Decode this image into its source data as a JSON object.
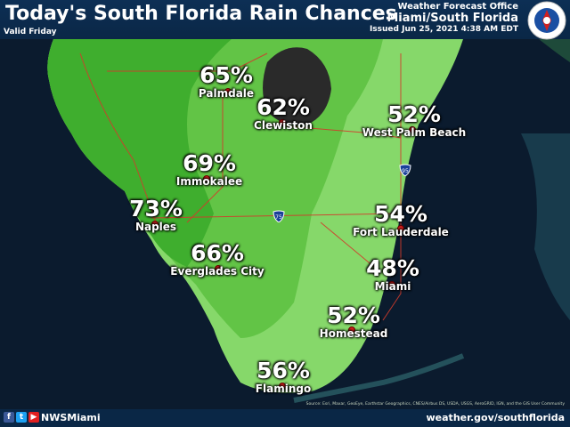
{
  "header": {
    "title": "Today's South Florida Rain Chances",
    "valid": "Valid Friday",
    "office_line1": "Weather Forecast Office",
    "office_line2": "Miami/South Florida",
    "issued": "Issued Jun 25, 2021 4:38 AM EDT"
  },
  "logo": {
    "icon": "noaa-nws-logo-icon",
    "text": "NATIONAL WEATHER SERVICE"
  },
  "cities": [
    {
      "name": "Palmdale",
      "chance": "65%"
    },
    {
      "name": "Clewiston",
      "chance": "62%"
    },
    {
      "name": "West Palm Beach",
      "chance": "52%"
    },
    {
      "name": "Immokalee",
      "chance": "69%"
    },
    {
      "name": "Naples",
      "chance": "73%"
    },
    {
      "name": "Fort Lauderdale",
      "chance": "54%"
    },
    {
      "name": "Everglades City",
      "chance": "66%"
    },
    {
      "name": "Miami",
      "chance": "48%"
    },
    {
      "name": "Homestead",
      "chance": "52%"
    },
    {
      "name": "Flamingo",
      "chance": "56%"
    }
  ],
  "highways": {
    "i75": "75",
    "i95": "95"
  },
  "footer": {
    "handle": "NWSMiami",
    "website": "weather.gov/southflorida",
    "attribution": "Source: Esri, Maxar, GeoEye, Earthstar Geographics, CNES/Airbus DS, USDA, USGS, AeroGRID, IGN, and the GIS User Community"
  },
  "colors": {
    "water": "#0b1b2e",
    "land_high": "#3fae2e",
    "land_mid": "#62c446",
    "land_low": "#86d86a",
    "lake": "#2a2a2a",
    "city_dot": "#d3201f",
    "header": "#0d2f55"
  }
}
